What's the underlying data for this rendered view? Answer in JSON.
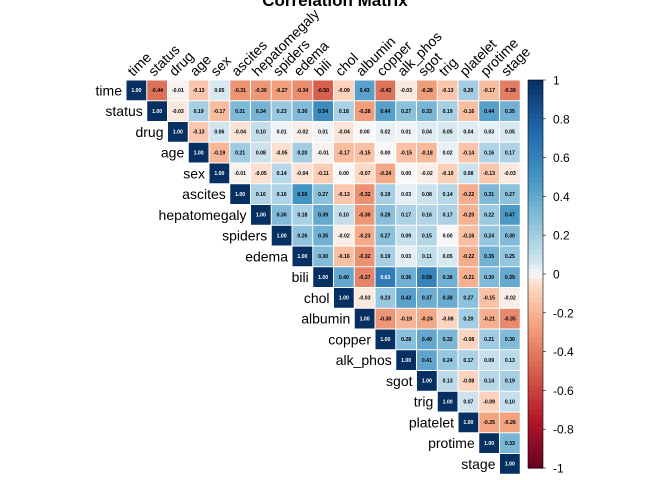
{
  "chart_data": {
    "type": "heatmap",
    "style": "upper-triangle correlation matrix with colored squares and printed coefficients",
    "title": "Correlation Matrix",
    "variables": [
      "time",
      "status",
      "drug",
      "age",
      "sex",
      "ascites",
      "hepatomegaly",
      "spiders",
      "edema",
      "bili",
      "chol",
      "albumin",
      "copper",
      "alk_phos",
      "sgot",
      "trig",
      "platelet",
      "protime",
      "stage"
    ],
    "matrix": [
      [
        "1.00",
        "-0.44",
        "-0.01",
        "-0.13",
        "0.05",
        "-0.31",
        "-0.30",
        "-0.27",
        "-0.34",
        "-0.50",
        "-0.09",
        "0.43",
        "-0.43",
        "-0.03",
        "-0.28",
        "-0.13",
        "0.20",
        "-0.17",
        "-0.39"
      ],
      [
        null,
        "1.00",
        "-0.03",
        "0.19",
        "-0.17",
        "0.31",
        "0.34",
        "0.23",
        "0.30",
        "0.54",
        "0.18",
        "-0.28",
        "0.44",
        "0.27",
        "0.33",
        "0.19",
        "-0.16",
        "0.44",
        "0.35"
      ],
      [
        null,
        null,
        "1.00",
        "-0.13",
        "0.06",
        "-0.04",
        "0.10",
        "0.01",
        "-0.02",
        "0.01",
        "-0.04",
        "0.00",
        "0.02",
        "0.01",
        "0.04",
        "0.05",
        "0.04",
        "0.03",
        "0.05"
      ],
      [
        null,
        null,
        null,
        "1.00",
        "-0.19",
        "0.21",
        "0.08",
        "-0.05",
        "0.20",
        "-0.01",
        "-0.17",
        "-0.15",
        "0.00",
        "-0.15",
        "-0.18",
        "0.02",
        "-0.14",
        "0.16",
        "0.17"
      ],
      [
        null,
        null,
        null,
        null,
        "1.00",
        "-0.01",
        "-0.05",
        "0.14",
        "-0.04",
        "-0.11",
        "0.00",
        "-0.07",
        "-0.24",
        "0.00",
        "-0.02",
        "-0.10",
        "0.08",
        "-0.13",
        "-0.03"
      ],
      [
        null,
        null,
        null,
        null,
        null,
        "1.00",
        "0.16",
        "0.16",
        "0.50",
        "0.27",
        "-0.13",
        "-0.32",
        "0.19",
        "0.03",
        "0.08",
        "0.14",
        "-0.22",
        "0.31",
        "0.27"
      ],
      [
        null,
        null,
        null,
        null,
        null,
        null,
        "1.00",
        "0.30",
        "0.18",
        "0.39",
        "0.10",
        "-0.30",
        "0.28",
        "0.17",
        "0.16",
        "0.17",
        "-0.20",
        "0.22",
        "0.47"
      ],
      [
        null,
        null,
        null,
        null,
        null,
        null,
        null,
        "1.00",
        "0.26",
        "0.35",
        "-0.02",
        "-0.23",
        "0.27",
        "0.09",
        "0.15",
        "0.00",
        "-0.16",
        "0.24",
        "0.30"
      ],
      [
        null,
        null,
        null,
        null,
        null,
        null,
        null,
        null,
        "1.00",
        "0.30",
        "-0.16",
        "-0.32",
        "0.19",
        "0.03",
        "0.11",
        "0.05",
        "-0.22",
        "0.35",
        "0.25"
      ],
      [
        null,
        null,
        null,
        null,
        null,
        null,
        null,
        null,
        null,
        "1.00",
        "0.40",
        "-0.37",
        "0.63",
        "0.36",
        "0.59",
        "0.36",
        "-0.21",
        "0.30",
        "0.39"
      ],
      [
        null,
        null,
        null,
        null,
        null,
        null,
        null,
        null,
        null,
        null,
        "1.00",
        "-0.03",
        "0.23",
        "0.43",
        "0.37",
        "0.38",
        "0.27",
        "-0.15",
        "-0.02"
      ],
      [
        null,
        null,
        null,
        null,
        null,
        null,
        null,
        null,
        null,
        null,
        null,
        "1.00",
        "-0.30",
        "-0.19",
        "-0.24",
        "-0.08",
        "0.20",
        "-0.21",
        "-0.35"
      ],
      [
        null,
        null,
        null,
        null,
        null,
        null,
        null,
        null,
        null,
        null,
        null,
        null,
        "1.00",
        "0.28",
        "0.40",
        "0.32",
        "-0.08",
        "0.21",
        "0.30"
      ],
      [
        null,
        null,
        null,
        null,
        null,
        null,
        null,
        null,
        null,
        null,
        null,
        null,
        null,
        "1.00",
        "0.41",
        "0.24",
        "0.17",
        "0.09",
        "0.13"
      ],
      [
        null,
        null,
        null,
        null,
        null,
        null,
        null,
        null,
        null,
        null,
        null,
        null,
        null,
        null,
        "1.00",
        "0.13",
        "-0.08",
        "0.14",
        "0.19"
      ],
      [
        null,
        null,
        null,
        null,
        null,
        null,
        null,
        null,
        null,
        null,
        null,
        null,
        null,
        null,
        null,
        "1.00",
        "0.07",
        "-0.09",
        "0.10"
      ],
      [
        null,
        null,
        null,
        null,
        null,
        null,
        null,
        null,
        null,
        null,
        null,
        null,
        null,
        null,
        null,
        null,
        "1.00",
        "-0.25",
        "-0.26"
      ],
      [
        null,
        null,
        null,
        null,
        null,
        null,
        null,
        null,
        null,
        null,
        null,
        null,
        null,
        null,
        null,
        null,
        null,
        "1.00",
        "0.33"
      ],
      [
        null,
        null,
        null,
        null,
        null,
        null,
        null,
        null,
        null,
        null,
        null,
        null,
        null,
        null,
        null,
        null,
        null,
        null,
        "1.00"
      ]
    ],
    "colorbar": {
      "range": [
        -1,
        1
      ],
      "ticks": [
        "1",
        "0.8",
        "0.6",
        "0.4",
        "0.2",
        "0",
        "-0.2",
        "-0.4",
        "-0.6",
        "-0.8",
        "-1"
      ],
      "low_color": "#67001F",
      "mid_color": "#F7F7F7",
      "high_color": "#053061"
    },
    "grid": false,
    "legend": "right"
  }
}
